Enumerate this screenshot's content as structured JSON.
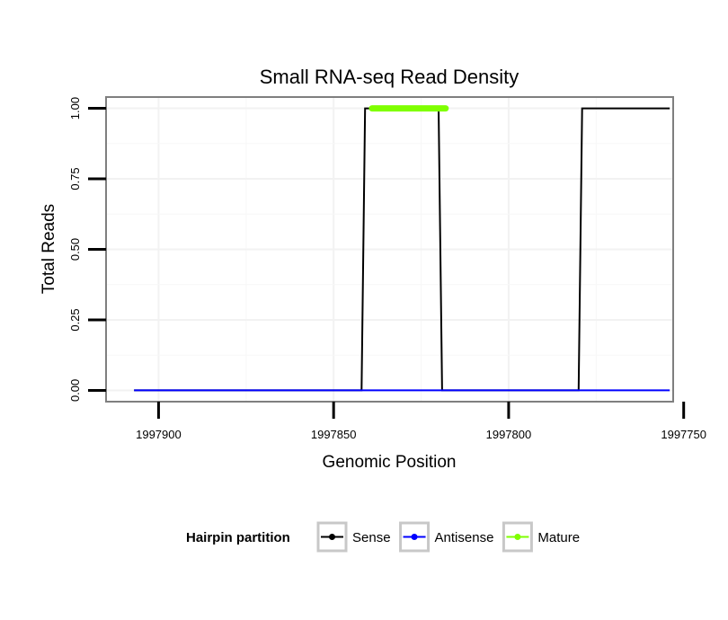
{
  "chart_data": {
    "type": "line",
    "title": "Small RNA-seq Read Density",
    "xlabel": "Genomic Position",
    "ylabel": "Total Reads",
    "x_reversed": true,
    "xlim": [
      1997915,
      1997753
    ],
    "ylim": [
      -0.04,
      1.04
    ],
    "x_ticks": [
      1997900,
      1997850,
      1997800,
      1997750
    ],
    "x_tick_labels": [
      "1997900",
      "1997850",
      "1997800",
      "1997750"
    ],
    "y_ticks": [
      0,
      0.25,
      0.5,
      0.75,
      1.0
    ],
    "y_tick_labels": [
      "0.00",
      "0.25",
      "0.50",
      "0.75",
      "1.00"
    ],
    "grid": true,
    "legend": {
      "title": "Hairpin partition",
      "position": "bottom"
    },
    "series": [
      {
        "name": "Sense",
        "color": "#000000",
        "x": [
          1997907,
          1997842,
          1997841,
          1997820,
          1997819,
          1997780,
          1997779,
          1997754
        ],
        "y": [
          0,
          0,
          1,
          1,
          0,
          0,
          1,
          1
        ]
      },
      {
        "name": "Antisense",
        "color": "#0000ff",
        "x": [
          1997907,
          1997754
        ],
        "y": [
          0,
          0
        ]
      },
      {
        "name": "Mature",
        "color": "#7fff00",
        "x": [
          1997839,
          1997818
        ],
        "y": [
          1,
          1
        ]
      }
    ]
  }
}
